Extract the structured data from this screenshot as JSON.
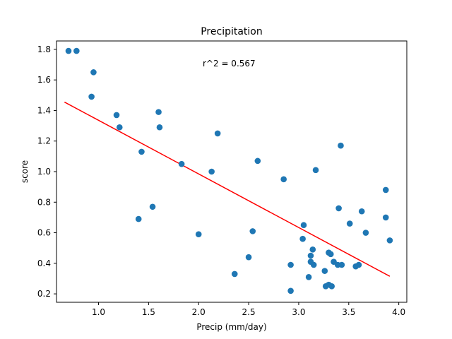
{
  "chart_data": {
    "type": "scatter",
    "title": "Precipitation",
    "xlabel": "Precip (mm/day)",
    "ylabel": "score",
    "annotation": "r^2 = 0.567",
    "xlim": [
      0.58,
      4.08
    ],
    "ylim": [
      0.145,
      1.855
    ],
    "x_ticks": [
      1.0,
      1.5,
      2.0,
      2.5,
      3.0,
      3.5,
      4.0
    ],
    "x_tick_labels": [
      "1.0",
      "1.5",
      "2.0",
      "2.5",
      "3.0",
      "3.5",
      "4.0"
    ],
    "y_ticks": [
      0.2,
      0.4,
      0.6,
      0.8,
      1.0,
      1.2,
      1.4,
      1.6,
      1.8
    ],
    "y_tick_labels": [
      "0.2",
      "0.4",
      "0.6",
      "0.8",
      "1.0",
      "1.2",
      "1.4",
      "1.6",
      "1.8"
    ],
    "grid": false,
    "colors": {
      "points": "#1f77b4",
      "fit_line": "#ff0000"
    },
    "points": [
      {
        "x": 0.7,
        "y": 1.79
      },
      {
        "x": 0.78,
        "y": 1.79
      },
      {
        "x": 0.95,
        "y": 1.65
      },
      {
        "x": 0.93,
        "y": 1.49
      },
      {
        "x": 1.18,
        "y": 1.37
      },
      {
        "x": 1.21,
        "y": 1.29
      },
      {
        "x": 1.43,
        "y": 1.13
      },
      {
        "x": 1.6,
        "y": 1.39
      },
      {
        "x": 1.61,
        "y": 1.29
      },
      {
        "x": 1.54,
        "y": 0.77
      },
      {
        "x": 1.4,
        "y": 0.69
      },
      {
        "x": 1.83,
        "y": 1.05
      },
      {
        "x": 2.0,
        "y": 0.59
      },
      {
        "x": 2.13,
        "y": 1.0
      },
      {
        "x": 2.19,
        "y": 1.25
      },
      {
        "x": 2.36,
        "y": 0.33
      },
      {
        "x": 2.5,
        "y": 0.44
      },
      {
        "x": 2.54,
        "y": 0.61
      },
      {
        "x": 2.59,
        "y": 1.07
      },
      {
        "x": 2.85,
        "y": 0.95
      },
      {
        "x": 2.92,
        "y": 0.39
      },
      {
        "x": 2.92,
        "y": 0.22
      },
      {
        "x": 3.04,
        "y": 0.56
      },
      {
        "x": 3.05,
        "y": 0.65
      },
      {
        "x": 3.1,
        "y": 0.31
      },
      {
        "x": 3.12,
        "y": 0.45
      },
      {
        "x": 3.12,
        "y": 0.41
      },
      {
        "x": 3.14,
        "y": 0.49
      },
      {
        "x": 3.15,
        "y": 0.39
      },
      {
        "x": 3.17,
        "y": 1.01
      },
      {
        "x": 3.26,
        "y": 0.35
      },
      {
        "x": 3.27,
        "y": 0.25
      },
      {
        "x": 3.3,
        "y": 0.26
      },
      {
        "x": 3.33,
        "y": 0.25
      },
      {
        "x": 3.3,
        "y": 0.47
      },
      {
        "x": 3.32,
        "y": 0.46
      },
      {
        "x": 3.35,
        "y": 0.41
      },
      {
        "x": 3.39,
        "y": 0.39
      },
      {
        "x": 3.43,
        "y": 0.39
      },
      {
        "x": 3.4,
        "y": 0.76
      },
      {
        "x": 3.42,
        "y": 1.17
      },
      {
        "x": 3.51,
        "y": 0.66
      },
      {
        "x": 3.57,
        "y": 0.38
      },
      {
        "x": 3.6,
        "y": 0.39
      },
      {
        "x": 3.63,
        "y": 0.74
      },
      {
        "x": 3.67,
        "y": 0.6
      },
      {
        "x": 3.87,
        "y": 0.88
      },
      {
        "x": 3.87,
        "y": 0.7
      },
      {
        "x": 3.91,
        "y": 0.55
      }
    ],
    "fit_line": {
      "x": [
        0.66,
        3.91
      ],
      "y": [
        1.455,
        0.315
      ]
    }
  }
}
